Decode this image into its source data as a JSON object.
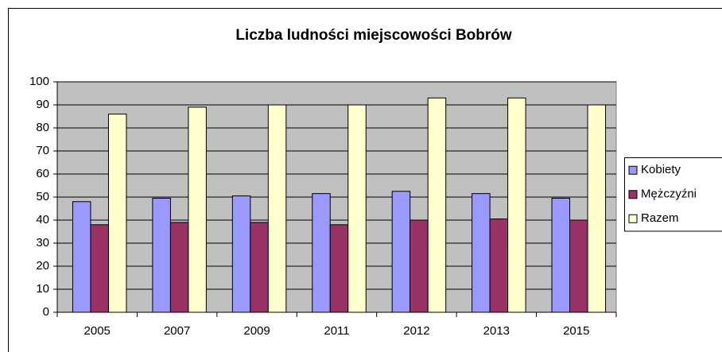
{
  "chart_data": {
    "type": "bar",
    "title": "Liczba ludności miejscowości Bobrów",
    "categories": [
      "2005",
      "2007",
      "2009",
      "2011",
      "2012",
      "2013",
      "2015"
    ],
    "series": [
      {
        "name": "Kobiety",
        "color": "#9999ff",
        "values": [
          48,
          49.5,
          50.5,
          51.5,
          52.5,
          51.5,
          49.5
        ]
      },
      {
        "name": "Mężczyźni",
        "color": "#993366",
        "values": [
          38,
          39,
          39,
          38,
          40,
          40.5,
          40
        ]
      },
      {
        "name": "Razem",
        "color": "#ffffcc",
        "values": [
          86,
          89,
          90,
          90,
          93,
          93,
          90
        ]
      }
    ],
    "ylim": [
      0,
      100
    ],
    "yticks": [
      0,
      10,
      20,
      30,
      40,
      50,
      60,
      70,
      80,
      90,
      100
    ],
    "grid": true,
    "legend": "right",
    "plot_background": "#c0c0c0"
  }
}
